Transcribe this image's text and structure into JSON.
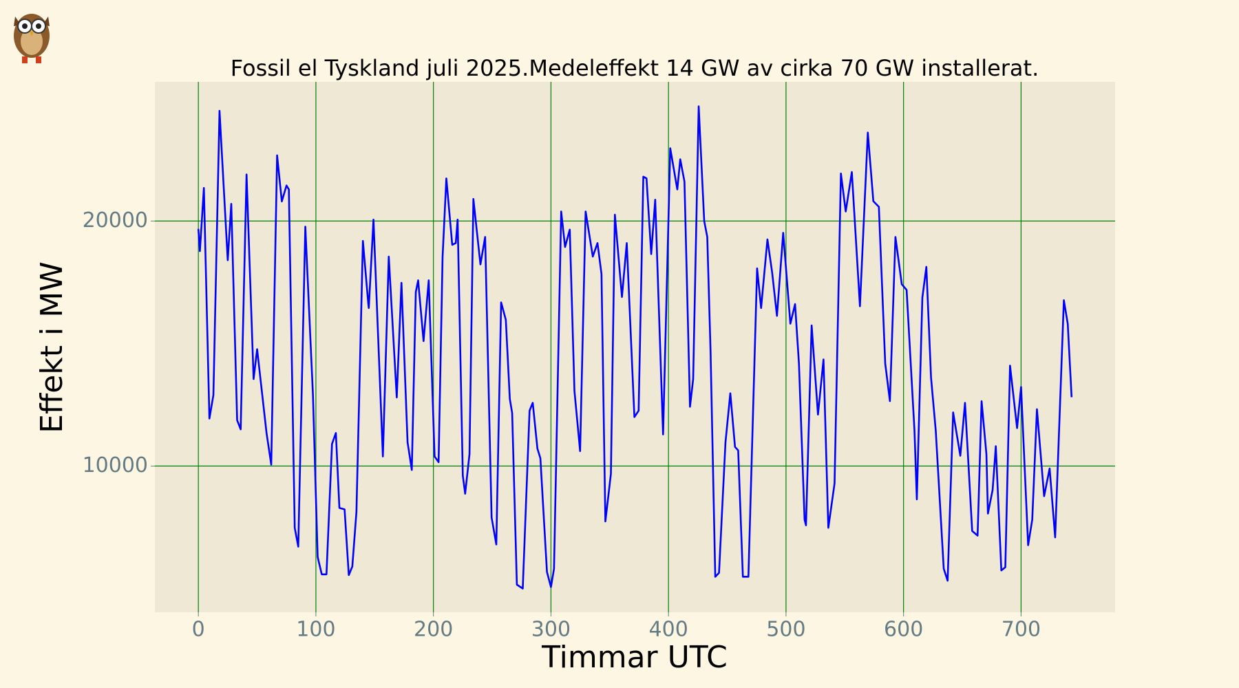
{
  "chart_data": {
    "type": "line",
    "title": "Fossil el Tyskland juli 2025.Medeleffekt 14 GW av cirka 70 GW installerat.",
    "x_label": "Timmar UTC",
    "y_label": "Effekt i MW",
    "xlim": [
      -37,
      780
    ],
    "ylim": [
      4030,
      25680
    ],
    "xticks": [
      0,
      100,
      200,
      300,
      400,
      500,
      600,
      700
    ],
    "yticks": [
      10000,
      20000
    ],
    "grid": true,
    "color": "#0000ff",
    "x": [
      0,
      1.3,
      4.7,
      9.4,
      12.8,
      18,
      25,
      28,
      33,
      36,
      41,
      47,
      50,
      58,
      62,
      67,
      71,
      75,
      77,
      82,
      85,
      91,
      97.5,
      101.5,
      105,
      109,
      113.7,
      117,
      120,
      124.4,
      128,
      131,
      134.5,
      140,
      144.6,
      145,
      149,
      157,
      162,
      168.8,
      172.8,
      178,
      181.6,
      185,
      187,
      191.6,
      196,
      201,
      204.4,
      207.8,
      211,
      216,
      219,
      220.6,
      225,
      227,
      230.7,
      234,
      240,
      244,
      249.5,
      253.5,
      257.6,
      261.6,
      265,
      267,
      271,
      276,
      281.8,
      284.5,
      288.5,
      291,
      296.6,
      300,
      302.6,
      308.7,
      312,
      316,
      320,
      324.8,
      329.5,
      335.6,
      339.6,
      343,
      346.3,
      351,
      354.4,
      360.4,
      364.5,
      371,
      374.6,
      378.6,
      381.3,
      385.3,
      388.7,
      395.4,
      401.5,
      407.5,
      410,
      413.6,
      418.3,
      421,
      425.7,
      430.4,
      433,
      435.8,
      439.8,
      443,
      448.5,
      452.6,
      456.6,
      459.3,
      463.3,
      468,
      475.4,
      478.8,
      484.2,
      488.2,
      492.3,
      497.6,
      503.7,
      507.7,
      511,
      515.8,
      517,
      521.8,
      527.2,
      531.9,
      536,
      541.3,
      546.7,
      550.8,
      556,
      562.9,
      569.6,
      574.3,
      579,
      584.4,
      588.4,
      593.1,
      598.5,
      602.6,
      609.3,
      611.3,
      616,
      619.4,
      623.4,
      627.4,
      634.2,
      637.5,
      642.2,
      648.3,
      652.3,
      658.4,
      663,
      666.4,
      670.5,
      671.8,
      675.8,
      678.5,
      683.2,
      686.6,
      690.6,
      696.6,
      700,
      706,
      709.5,
      713.5,
      719.6,
      724.3,
      729,
      736.4,
      739.7,
      743
    ],
    "values": [
      19680,
      18770,
      21350,
      11940,
      12900,
      24500,
      18400,
      20700,
      11870,
      11500,
      21900,
      13550,
      14770,
      11350,
      10060,
      22680,
      20800,
      21450,
      21290,
      7480,
      6710,
      19770,
      12900,
      6290,
      5580,
      5580,
      10900,
      11350,
      8290,
      8230,
      5550,
      5900,
      8130,
      19190,
      16610,
      16450,
      20060,
      10390,
      18550,
      12800,
      17480,
      10970,
      9840,
      17100,
      17580,
      15100,
      17580,
      10390,
      10160,
      18550,
      21740,
      19030,
      19100,
      20060,
      9610,
      8870,
      10490,
      20900,
      18230,
      19350,
      7900,
      6800,
      16680,
      15970,
      12740,
      12160,
      5160,
      5000,
      12260,
      12580,
      10710,
      10320,
      5680,
      5060,
      5810,
      20390,
      18940,
      19650,
      13060,
      10610,
      20390,
      18550,
      19100,
      17840,
      7740,
      9680,
      20260,
      16900,
      19100,
      12000,
      12260,
      21810,
      21740,
      18650,
      20870,
      11290,
      22970,
      21290,
      22520,
      21610,
      12420,
      13550,
      24680,
      20000,
      19350,
      14680,
      5480,
      5640,
      10970,
      12970,
      10780,
      10640,
      5480,
      5480,
      18070,
      16450,
      19250,
      17900,
      16130,
      19520,
      15810,
      16610,
      14190,
      7810,
      7580,
      15740,
      12100,
      14350,
      7480,
      9290,
      21940,
      20390,
      22000,
      16520,
      23610,
      20810,
      20580,
      14190,
      12650,
      19350,
      17420,
      17190,
      11450,
      8640,
      16870,
      18130,
      13610,
      11450,
      5810,
      5320,
      12190,
      10420,
      12580,
      7350,
      7160,
      12650,
      10490,
      8060,
      9030,
      10810,
      5740,
      5870,
      14100,
      11550,
      13230,
      6770,
      7810,
      12320,
      8770,
      9900,
      7090,
      16770,
      15810,
      12810
    ]
  }
}
